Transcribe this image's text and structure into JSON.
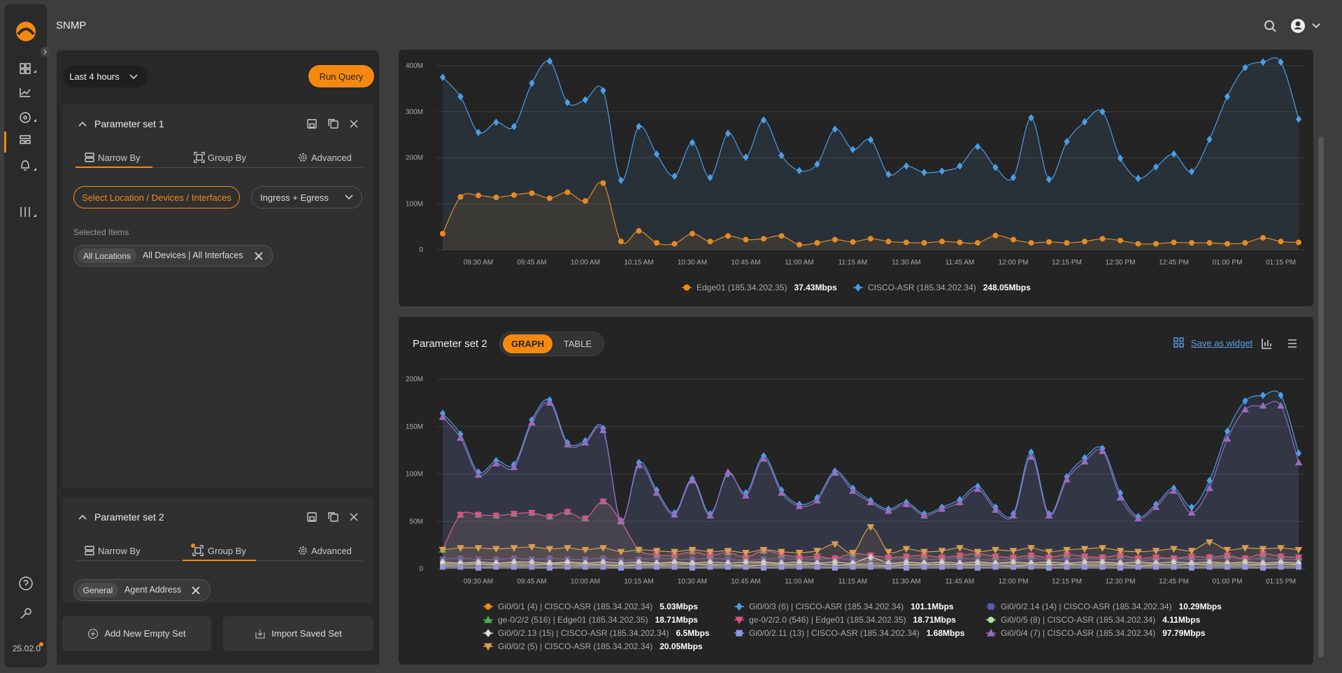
{
  "app": {
    "title": "SNMP",
    "version": "25.02.0"
  },
  "query": {
    "time_range": "Last 4 hours",
    "run": "Run Query"
  },
  "parameter_sets": [
    {
      "title": "Parameter set 1",
      "tabs": [
        "Narrow By",
        "Group By",
        "Advanced"
      ],
      "selector": "Select Location / Devices / Interfaces",
      "direction": "Ingress + Egress",
      "selected_label": "Selected Items",
      "chip": [
        "All Locations",
        "All Devices | All Interfaces"
      ]
    },
    {
      "title": "Parameter set 2",
      "tabs": [
        "Narrow By",
        "Group By",
        "Advanced"
      ],
      "chip": [
        "General",
        "Agent Address"
      ]
    }
  ],
  "buttons": [
    "Add New Empty Set",
    "Import Saved Set"
  ],
  "chart_panel": {
    "title": "Parameter set 2",
    "views": [
      "GRAPH",
      "TABLE"
    ],
    "action": "Save as widget"
  },
  "chart_data": [
    {
      "type": "line",
      "area": true,
      "grid": true,
      "categories": [
        null,
        null,
        "09:30 AM",
        null,
        null,
        "09:45 AM",
        null,
        null,
        "10:00 AM",
        null,
        null,
        "10:15 AM",
        null,
        null,
        "10:30 AM",
        null,
        null,
        "10:45 AM",
        null,
        null,
        "11:00 AM",
        null,
        null,
        "11:15 AM",
        null,
        null,
        "11:30 AM",
        null,
        null,
        "11:45 AM",
        null,
        null,
        "12:00 PM",
        null,
        null,
        "12:15 PM",
        null,
        null,
        "12:30 PM",
        null,
        null,
        "12:45 PM",
        null,
        null,
        "01:00 PM",
        null,
        null,
        "01:15 PM",
        null
      ],
      "ylim": [
        0,
        400
      ],
      "yticks": [
        0,
        {
          "value": 100,
          "label": "100M"
        },
        {
          "value": 200,
          "label": "200M"
        },
        {
          "value": 300,
          "label": "300M"
        },
        {
          "value": 400,
          "label": "400M"
        }
      ],
      "series": [
        {
          "name": "Edge01 (185.34.202.35)",
          "current": "37.43Mbps",
          "color": "#f5890f",
          "marker": "circle",
          "values": [
            35,
            115,
            118,
            114,
            119,
            123,
            112,
            125,
            106,
            145,
            18,
            41,
            15,
            13,
            35,
            18,
            30,
            22,
            24,
            30,
            11,
            15,
            22,
            17,
            24,
            18,
            16,
            15,
            18,
            16,
            15,
            31,
            22,
            15,
            17,
            15,
            18,
            24,
            20,
            13,
            13,
            16,
            15,
            15,
            13,
            15,
            26,
            18,
            16
          ]
        },
        {
          "name": "CISCO-ASR (185.34.202.34)",
          "current": "248.05Mbps",
          "color": "#4a9ee8",
          "marker": "diamond",
          "values": [
            375,
            333,
            255,
            277,
            268,
            362,
            410,
            320,
            326,
            346,
            151,
            268,
            208,
            160,
            233,
            157,
            253,
            201,
            282,
            205,
            172,
            186,
            262,
            218,
            239,
            164,
            182,
            168,
            171,
            182,
            224,
            179,
            157,
            287,
            153,
            235,
            278,
            300,
            199,
            155,
            180,
            208,
            170,
            240,
            333,
            396,
            408,
            408,
            284
          ]
        }
      ]
    },
    {
      "type": "line",
      "area": true,
      "grid": true,
      "categories": [
        null,
        null,
        "09:30 AM",
        null,
        null,
        "09:45 AM",
        null,
        null,
        "10:00 AM",
        null,
        null,
        "10:15 AM",
        null,
        null,
        "10:30 AM",
        null,
        null,
        "10:45 AM",
        null,
        null,
        "11:00 AM",
        null,
        null,
        "11:15 AM",
        null,
        null,
        "11:30 AM",
        null,
        null,
        "11:45 AM",
        null,
        null,
        "12:00 PM",
        null,
        null,
        "12:15 PM",
        null,
        null,
        "12:30 PM",
        null,
        null,
        "12:45 PM",
        null,
        null,
        "01:00 PM",
        null,
        null,
        "01:15 PM",
        null
      ],
      "ylim": [
        0,
        200
      ],
      "yticks": [
        0,
        {
          "value": 50,
          "label": "50M"
        },
        {
          "value": 100,
          "label": "100M"
        },
        {
          "value": 150,
          "label": "150M"
        },
        {
          "value": 200,
          "label": "200M"
        }
      ],
      "series": [
        {
          "name": "Gi0/0/1 (4) | CISCO-ASR (185.34.202.34)",
          "current": "5.03Mbps",
          "color": "#f5890f",
          "marker": "circle",
          "values": [
            5,
            6,
            5,
            5,
            6,
            5,
            5,
            6,
            5,
            5,
            4,
            5,
            5,
            6,
            5,
            5,
            4,
            5,
            6,
            5,
            5,
            5,
            4,
            5,
            6,
            5,
            5,
            5,
            4,
            5,
            5,
            6,
            5,
            5,
            5,
            4,
            5,
            6,
            5,
            5,
            5,
            4,
            5,
            5,
            6,
            5,
            5,
            5,
            5
          ]
        },
        {
          "name": "Gi0/0/3 (6) | CISCO-ASR (185.34.202.34)",
          "current": "101.1Mbps",
          "color": "#4a9ee8",
          "marker": "diamond",
          "values": [
            164,
            142,
            102,
            114,
            110,
            157,
            178,
            133,
            135,
            148,
            50,
            112,
            83,
            59,
            95,
            58,
            100,
            80,
            119,
            83,
            68,
            75,
            103,
            85,
            72,
            63,
            70,
            58,
            65,
            73,
            87,
            65,
            58,
            123,
            58,
            97,
            117,
            127,
            80,
            55,
            68,
            85,
            65,
            93,
            145,
            177,
            183,
            183,
            122
          ]
        },
        {
          "name": "Gi0/0/2.14 (14) | CISCO-ASR (185.34.202.34)",
          "current": "10.29Mbps",
          "color": "#5b5bb0",
          "marker": "square",
          "values": [
            10,
            11,
            10,
            10,
            11,
            10,
            11,
            10,
            10,
            11,
            9,
            10,
            11,
            10,
            10,
            11,
            10,
            9,
            10,
            11,
            10,
            10,
            11,
            10,
            9,
            10,
            11,
            10,
            10,
            11,
            10,
            9,
            10,
            11,
            10,
            10,
            11,
            10,
            10,
            9,
            10,
            11,
            10,
            10,
            12,
            10,
            11,
            10,
            10
          ]
        },
        {
          "name": "ge-0/2/2 (516) | Edge01 (185.34.202.35)",
          "current": "18.71Mbps",
          "color": "#4caf50",
          "marker": "triangle",
          "values": [
            20,
            57,
            57,
            56,
            58,
            59,
            55,
            60,
            53,
            71,
            50,
            20,
            15,
            14,
            18,
            14,
            17,
            12,
            19,
            15,
            12,
            13,
            11,
            16,
            14,
            12,
            13,
            14,
            12,
            14,
            16,
            13,
            12,
            14,
            12,
            15,
            13,
            12,
            14,
            11,
            12,
            11,
            13,
            12,
            14,
            11,
            16,
            13,
            12
          ]
        },
        {
          "name": "ge-0/2/2.0 (546) | Edge01 (185.34.202.35)",
          "current": "18.71Mbps",
          "color": "#e0508a",
          "marker": "triangle-down",
          "values": [
            20,
            57,
            57,
            56,
            58,
            59,
            55,
            60,
            53,
            71,
            50,
            20,
            15,
            14,
            18,
            14,
            17,
            12,
            19,
            15,
            12,
            13,
            11,
            16,
            14,
            12,
            13,
            14,
            12,
            14,
            16,
            13,
            12,
            14,
            12,
            15,
            13,
            12,
            14,
            11,
            12,
            11,
            13,
            12,
            14,
            11,
            16,
            13,
            12
          ]
        },
        {
          "name": "Gi0/0/5 (8) | CISCO-ASR (185.34.202.34)",
          "current": "4.11Mbps",
          "color": "#a8e6a8",
          "marker": "circle",
          "values": [
            4,
            4,
            5,
            4,
            4,
            4,
            5,
            4,
            4,
            4,
            3,
            4,
            4,
            4,
            5,
            4,
            4,
            3,
            4,
            4,
            4,
            5,
            4,
            4,
            4,
            3,
            4,
            4,
            5,
            4,
            4,
            4,
            3,
            4,
            4,
            5,
            4,
            4,
            4,
            3,
            4,
            4,
            5,
            4,
            4,
            4,
            4,
            5,
            4
          ]
        },
        {
          "name": "Gi0/0/2.13 (15) | CISCO-ASR (185.34.202.34)",
          "current": "6.5Mbps",
          "color": "#dddddd",
          "marker": "diamond",
          "values": [
            7,
            6,
            7,
            6,
            7,
            7,
            6,
            7,
            6,
            7,
            6,
            7,
            6,
            7,
            6,
            7,
            6,
            7,
            7,
            6,
            7,
            6,
            7,
            6,
            12,
            6,
            7,
            6,
            7,
            6,
            7,
            6,
            7,
            6,
            7,
            6,
            7,
            7,
            6,
            7,
            6,
            7,
            6,
            7,
            6,
            7,
            6,
            7,
            6
          ]
        },
        {
          "name": "Gi0/0/2.11 (13) | CISCO-ASR (185.34.202.34)",
          "current": "1.68Mbps",
          "color": "#8c9ce8",
          "marker": "square",
          "values": [
            2,
            2,
            1,
            2,
            2,
            2,
            1,
            2,
            2,
            2,
            1,
            2,
            2,
            2,
            1,
            2,
            2,
            2,
            1,
            2,
            2,
            2,
            1,
            2,
            2,
            2,
            1,
            2,
            2,
            2,
            1,
            2,
            2,
            2,
            1,
            2,
            2,
            2,
            1,
            2,
            2,
            2,
            1,
            2,
            2,
            2,
            1,
            2,
            2
          ]
        },
        {
          "name": "Gi0/0/4 (7) | CISCO-ASR (185.34.202.34)",
          "current": "97.79Mbps",
          "color": "#9b6bbf",
          "marker": "triangle",
          "values": [
            160,
            138,
            99,
            111,
            107,
            154,
            175,
            131,
            133,
            146,
            51,
            109,
            80,
            57,
            93,
            56,
            102,
            77,
            116,
            80,
            66,
            72,
            101,
            82,
            70,
            61,
            68,
            56,
            63,
            70,
            84,
            62,
            56,
            118,
            56,
            94,
            113,
            124,
            75,
            53,
            65,
            82,
            59,
            85,
            137,
            168,
            172,
            172,
            112
          ]
        },
        {
          "name": "Gi0/0/2 (5) | CISCO-ASR (185.34.202.34)",
          "current": "20.05Mbps",
          "color": "#d9a050",
          "marker": "triangle-down",
          "values": [
            20,
            22,
            22,
            21,
            22,
            23,
            21,
            22,
            20,
            22,
            18,
            20,
            19,
            18,
            20,
            18,
            19,
            17,
            20,
            18,
            17,
            19,
            26,
            17,
            44,
            18,
            21,
            18,
            19,
            22,
            18,
            20,
            19,
            22,
            18,
            20,
            21,
            22,
            19,
            18,
            19,
            21,
            19,
            28,
            20,
            22,
            21,
            22,
            20
          ]
        }
      ]
    }
  ]
}
